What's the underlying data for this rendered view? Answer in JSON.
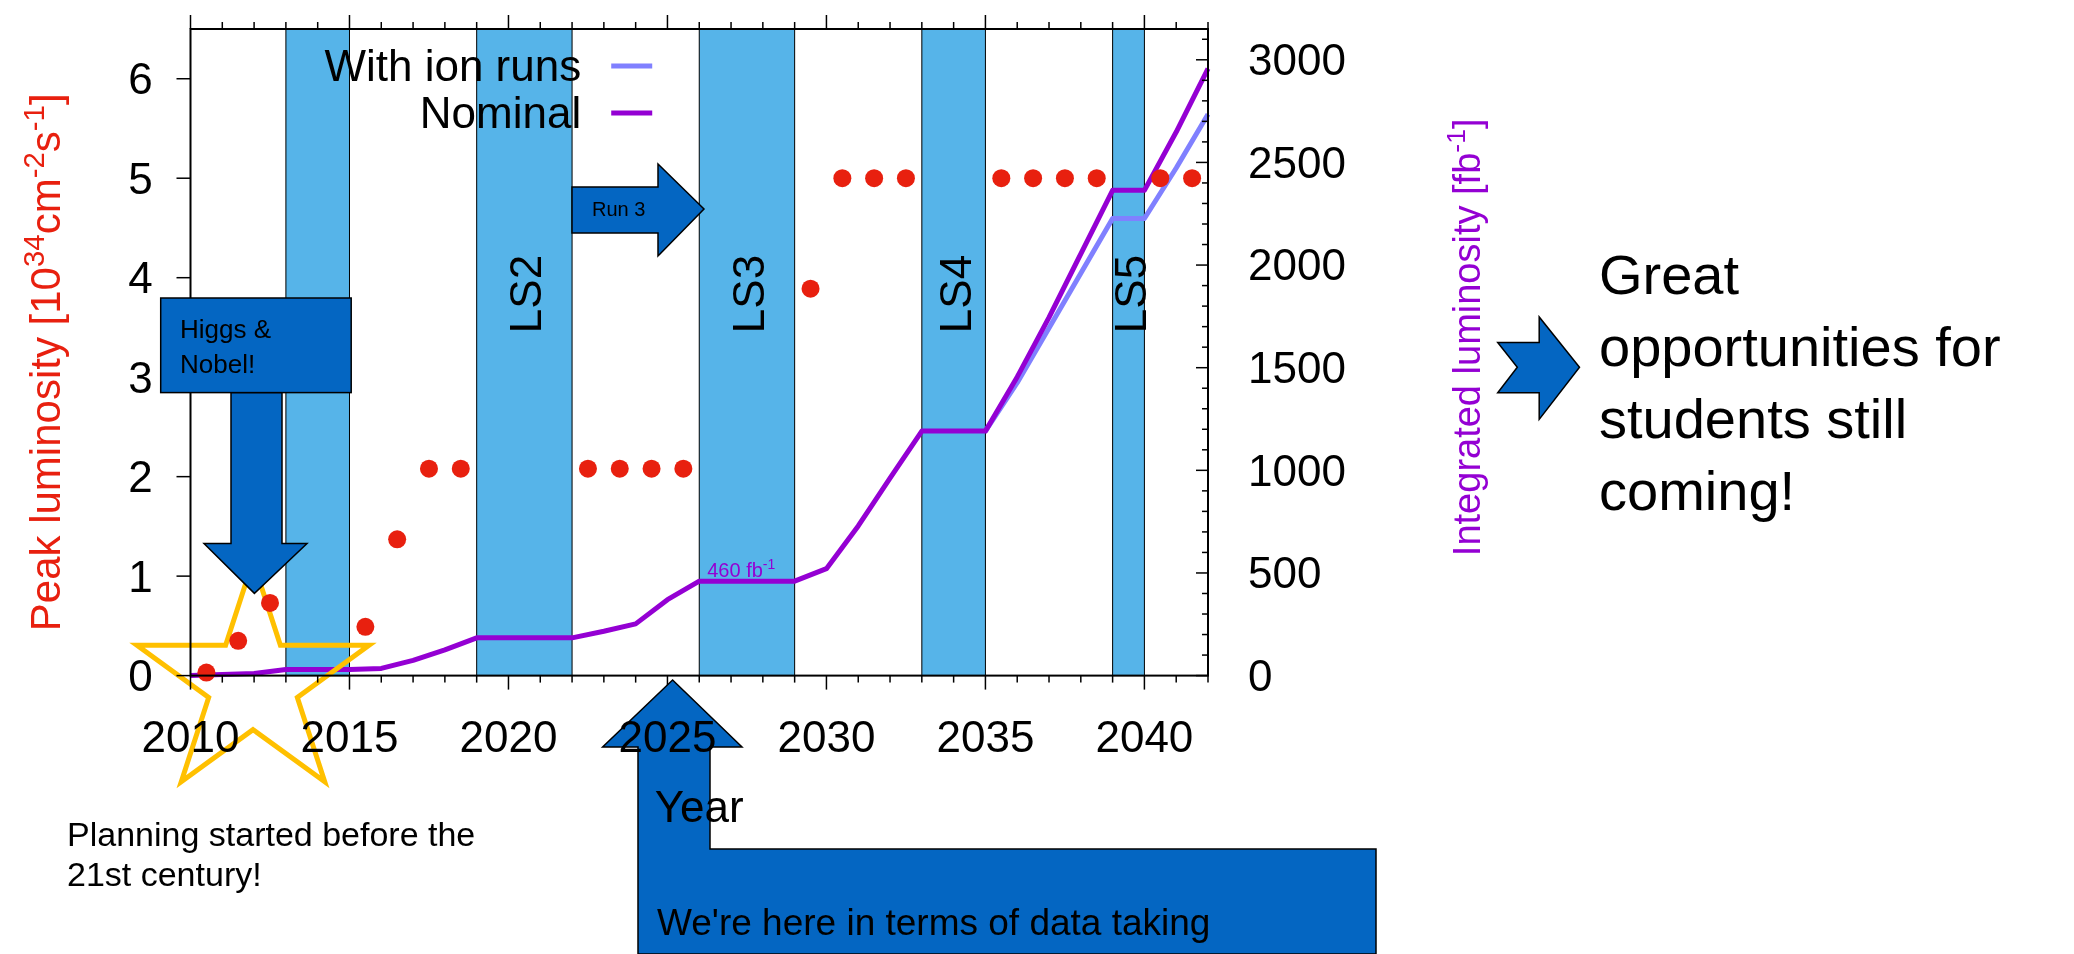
{
  "chart_data": {
    "type": "scatter",
    "xlabel": "Year",
    "ylabel": "Peak luminosity [10$^{34}$cm$^{-2}$s$^{-1}$]",
    "y2label": "Integrated luminosity [fb$^{-1}$]",
    "xlim": [
      2010,
      2042
    ],
    "xticks": [
      2010,
      {
        "value": 2011,
        "label": null
      },
      {
        "value": 2012,
        "label": null
      },
      {
        "value": 2013,
        "label": null
      },
      {
        "value": 2014,
        "label": null
      },
      2015,
      {
        "value": 2016,
        "label": null
      },
      {
        "value": 2017,
        "label": null
      },
      {
        "value": 2018,
        "label": null
      },
      {
        "value": 2019,
        "label": null
      },
      2020,
      {
        "value": 2021,
        "label": null
      },
      {
        "value": 2022,
        "label": null
      },
      {
        "value": 2023,
        "label": null
      },
      {
        "value": 2024,
        "label": null
      },
      2025,
      {
        "value": 2026,
        "label": null
      },
      {
        "value": 2027,
        "label": null
      },
      {
        "value": 2028,
        "label": null
      },
      {
        "value": 2029,
        "label": null
      },
      2030,
      {
        "value": 2031,
        "label": null
      },
      {
        "value": 2032,
        "label": null
      },
      {
        "value": 2033,
        "label": null
      },
      {
        "value": 2034,
        "label": null
      },
      2035,
      {
        "value": 2036,
        "label": null
      },
      {
        "value": 2037,
        "label": null
      },
      {
        "value": 2038,
        "label": null
      },
      {
        "value": 2039,
        "label": null
      },
      2040,
      {
        "value": 2041,
        "label": null
      },
      {
        "value": 2042,
        "label": null
      }
    ],
    "ylim": [
      0,
      6.5
    ],
    "yticks": [
      0,
      1,
      2,
      3,
      4,
      5,
      6
    ],
    "y2lim": [
      0,
      3150
    ],
    "y2ticks": [
      0,
      {
        "value": 100,
        "label": null
      },
      {
        "value": 200,
        "label": null
      },
      {
        "value": 300,
        "label": null
      },
      {
        "value": 400,
        "label": null
      },
      500,
      {
        "value": 600,
        "label": null
      },
      {
        "value": 700,
        "label": null
      },
      {
        "value": 800,
        "label": null
      },
      {
        "value": 900,
        "label": null
      },
      1000,
      {
        "value": 1100,
        "label": null
      },
      {
        "value": 1200,
        "label": null
      },
      {
        "value": 1300,
        "label": null
      },
      {
        "value": 1400,
        "label": null
      },
      1500,
      {
        "value": 1600,
        "label": null
      },
      {
        "value": 1700,
        "label": null
      },
      {
        "value": 1800,
        "label": null
      },
      {
        "value": 1900,
        "label": null
      },
      2000,
      {
        "value": 2100,
        "label": null
      },
      {
        "value": 2200,
        "label": null
      },
      {
        "value": 2300,
        "label": null
      },
      {
        "value": 2400,
        "label": null
      },
      2500,
      {
        "value": 2600,
        "label": null
      },
      {
        "value": 2700,
        "label": null
      },
      {
        "value": 2800,
        "label": null
      },
      {
        "value": 2900,
        "label": null
      },
      3000,
      {
        "value": 3100,
        "label": null
      }
    ],
    "legend": "top",
    "bands": [
      {
        "axis": "x",
        "from": 2013,
        "to": 2015,
        "color": "#56b4e9"
      },
      {
        "axis": "x",
        "from": 2019,
        "to": 2022,
        "label": "LS2",
        "color": "#56b4e9"
      },
      {
        "axis": "x",
        "from": 2026,
        "to": 2029,
        "label": "LS3",
        "color": "#56b4e9"
      },
      {
        "axis": "x",
        "from": 2033,
        "to": 2035,
        "label": "LS4",
        "color": "#56b4e9"
      },
      {
        "axis": "x",
        "from": 2039,
        "to": 2040,
        "label": "LS5",
        "color": "#56b4e9"
      }
    ],
    "series": [
      {
        "marker": "circle",
        "color": "#e8200f",
        "x": [
          2010.5,
          2011.5,
          2012.5,
          2015.5,
          2016.5,
          2017.5,
          2018.5,
          2022.5,
          2023.5,
          2024.5,
          2025.5,
          2029.5,
          2030.5,
          2031.5,
          2032.5,
          2035.5,
          2036.5,
          2037.5,
          2038.5,
          2040.5,
          2041.5
        ],
        "values": [
          0.03,
          0.35,
          0.73,
          0.49,
          1.37,
          2.08,
          2.08,
          2.08,
          2.08,
          2.08,
          2.08,
          3.89,
          5,
          5,
          5,
          5,
          5,
          5,
          5,
          5,
          5
        ]
      },
      {
        "type": "line",
        "name": "With ion runs",
        "axis": "y2",
        "color": "#8080ff",
        "line_style": "solid",
        "x": [
          2035,
          2036,
          2037,
          2038,
          2039,
          2040,
          2041,
          2042
        ],
        "values": [
          1191,
          1427,
          1693,
          1960,
          2227,
          2227,
          2473,
          2735
        ]
      },
      {
        "type": "line",
        "name": "Nominal",
        "axis": "y2",
        "color": "#9400d3",
        "line_style": "solid",
        "x": [
          2010,
          2012,
          2013,
          2015,
          2016,
          2017,
          2018,
          2019,
          2022,
          2023,
          2024,
          2025,
          2026,
          2029,
          2030,
          2031,
          2032,
          2033,
          2035,
          2036,
          2037,
          2038,
          2039,
          2040,
          2041,
          2042
        ],
        "values": [
          0,
          10,
          30,
          30,
          35,
          74,
          125,
          184,
          184,
          216,
          252,
          370,
          460,
          460,
          521,
          729,
          962,
          1191,
          1191,
          1455,
          1745,
          2055,
          2364,
          2364,
          2648,
          2957
        ]
      }
    ],
    "annotations": [
      "Higgs & Nobel!",
      "Run 3",
      "We're here in terms of data taking",
      "Planning started before the 21st century!",
      "Great opportunities for students still coming!",
      {
        "text": "460 fb$^{-1}$",
        "x": 2026,
        "y": 0.95
      }
    ]
  }
}
